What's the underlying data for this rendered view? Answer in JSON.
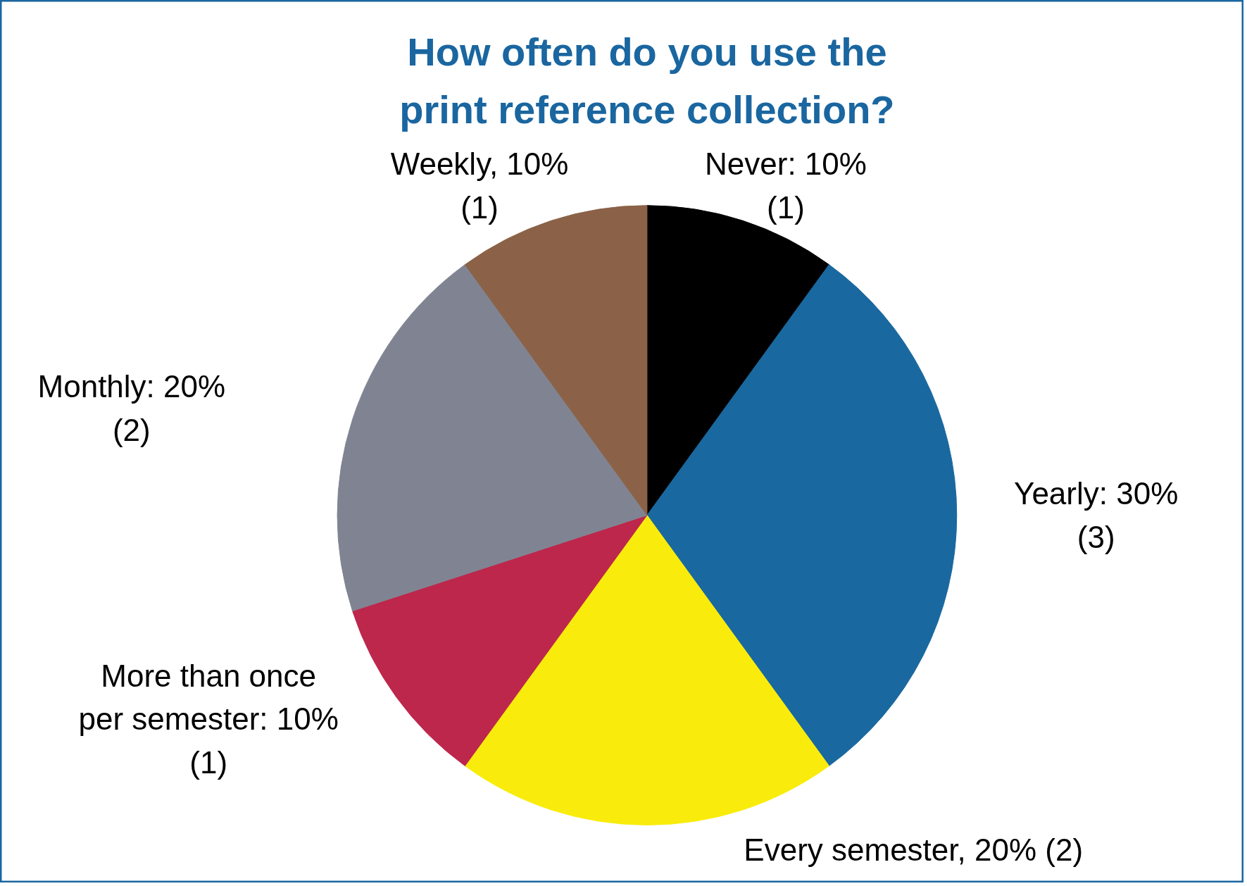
{
  "chart_data": {
    "type": "pie",
    "title": "How often do you use the\nprint reference collection?",
    "categories": [
      "Never: 10%\n(1)",
      "Yearly: 30%\n(3)",
      "Every semester, 20% (2)",
      "More than once\nper semester: 10%\n(1)",
      "Monthly: 20%\n(2)",
      "Weekly, 10%\n(1)"
    ],
    "values": [
      1,
      3,
      2,
      1,
      2,
      1
    ],
    "colors": [
      "#000000",
      "#1968a0",
      "#f9ec0c",
      "#bd274c",
      "#808492",
      "#8b6247"
    ]
  }
}
